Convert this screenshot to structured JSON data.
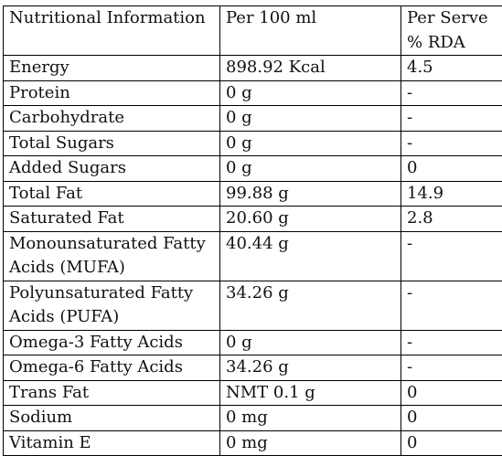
{
  "header": {
    "col1": "Nutritional Information",
    "col2": "Per 100 ml",
    "col3": "Per Serve % RDA"
  },
  "rows": [
    {
      "name": "Energy",
      "per100": "898.92 Kcal",
      "rda": "4.5"
    },
    {
      "name": "Protein",
      "per100": "0 g",
      "rda": "-"
    },
    {
      "name": "Carbohydrate",
      "per100": "0 g",
      "rda": "-"
    },
    {
      "name": "Total Sugars",
      "per100": "0 g",
      "rda": "-"
    },
    {
      "name": "Added Sugars",
      "per100": "0 g",
      "rda": "0"
    },
    {
      "name": "Total Fat",
      "per100": "99.88 g",
      "rda": "14.9"
    },
    {
      "name": "Saturated Fat",
      "per100": "20.60 g",
      "rda": "2.8"
    },
    {
      "name": "Monounsaturated Fatty Acids (MUFA)",
      "per100": "40.44 g",
      "rda": "-"
    },
    {
      "name": "Polyunsaturated Fatty Acids (PUFA)",
      "per100": "34.26 g",
      "rda": "-"
    },
    {
      "name": "Omega-3 Fatty Acids",
      "per100": "0 g",
      "rda": "-"
    },
    {
      "name": "Omega-6 Fatty Acids",
      "per100": "34.26 g",
      "rda": "-"
    },
    {
      "name": "Trans Fat",
      "per100": "NMT 0.1 g",
      "rda": "0"
    },
    {
      "name": "Sodium",
      "per100": "0 mg",
      "rda": "0"
    },
    {
      "name": "Vitamin E",
      "per100": "0 mg",
      "rda": "0"
    }
  ]
}
